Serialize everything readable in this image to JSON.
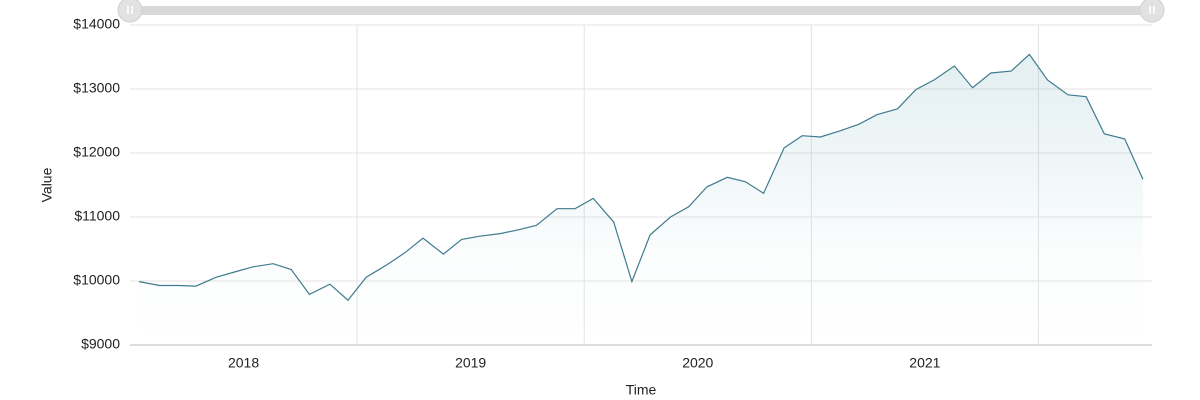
{
  "chart_data": {
    "type": "area-line",
    "x_label": "Time",
    "y_label": "Value",
    "x": [
      2018.04,
      2018.13,
      2018.21,
      2018.29,
      2018.38,
      2018.46,
      2018.54,
      2018.63,
      2018.71,
      2018.79,
      2018.88,
      2018.96,
      2019.04,
      2019.13,
      2019.21,
      2019.29,
      2019.38,
      2019.46,
      2019.54,
      2019.63,
      2019.71,
      2019.79,
      2019.88,
      2019.96,
      2020.04,
      2020.13,
      2020.21,
      2020.29,
      2020.38,
      2020.46,
      2020.54,
      2020.63,
      2020.71,
      2020.79,
      2020.88,
      2020.96,
      2021.04,
      2021.13,
      2021.21,
      2021.29,
      2021.38,
      2021.46,
      2021.54,
      2021.63,
      2021.71,
      2021.79,
      2021.88,
      2021.96,
      2022.04,
      2022.13,
      2022.21,
      2022.29,
      2022.38,
      2022.46
    ],
    "values": [
      9990,
      9930,
      9930,
      9920,
      10060,
      10140,
      10220,
      10270,
      10180,
      9790,
      9950,
      9700,
      10060,
      10250,
      10440,
      10670,
      10420,
      10650,
      10700,
      10740,
      10800,
      10870,
      11130,
      11130,
      11290,
      10920,
      9990,
      10720,
      11000,
      11160,
      11470,
      11620,
      11550,
      11370,
      12080,
      12270,
      12250,
      12350,
      12450,
      12600,
      12690,
      12990,
      13140,
      13360,
      13020,
      13250,
      13280,
      13540,
      13140,
      12910,
      12880,
      12300,
      12220,
      11590
    ],
    "color": "#3f7b8e",
    "xlim": [
      2018,
      2022.5
    ],
    "xticks": [
      {
        "value": 2018.5,
        "label": "2018"
      },
      {
        "value": 2019.5,
        "label": "2019"
      },
      {
        "value": 2020.5,
        "label": "2020"
      },
      {
        "value": 2021.5,
        "label": "2021"
      }
    ],
    "xgrid": [
      2019,
      2020,
      2021,
      2022
    ],
    "ylim": [
      9000,
      14000
    ],
    "yticks": [
      {
        "value": 9000,
        "label": "$9000"
      },
      {
        "value": 10000,
        "label": "$10000"
      },
      {
        "value": 11000,
        "label": "$11000"
      },
      {
        "value": 12000,
        "label": "$12000"
      },
      {
        "value": 13000,
        "label": "$13000"
      },
      {
        "value": 14000,
        "label": "$14000"
      }
    ],
    "grid": true
  }
}
